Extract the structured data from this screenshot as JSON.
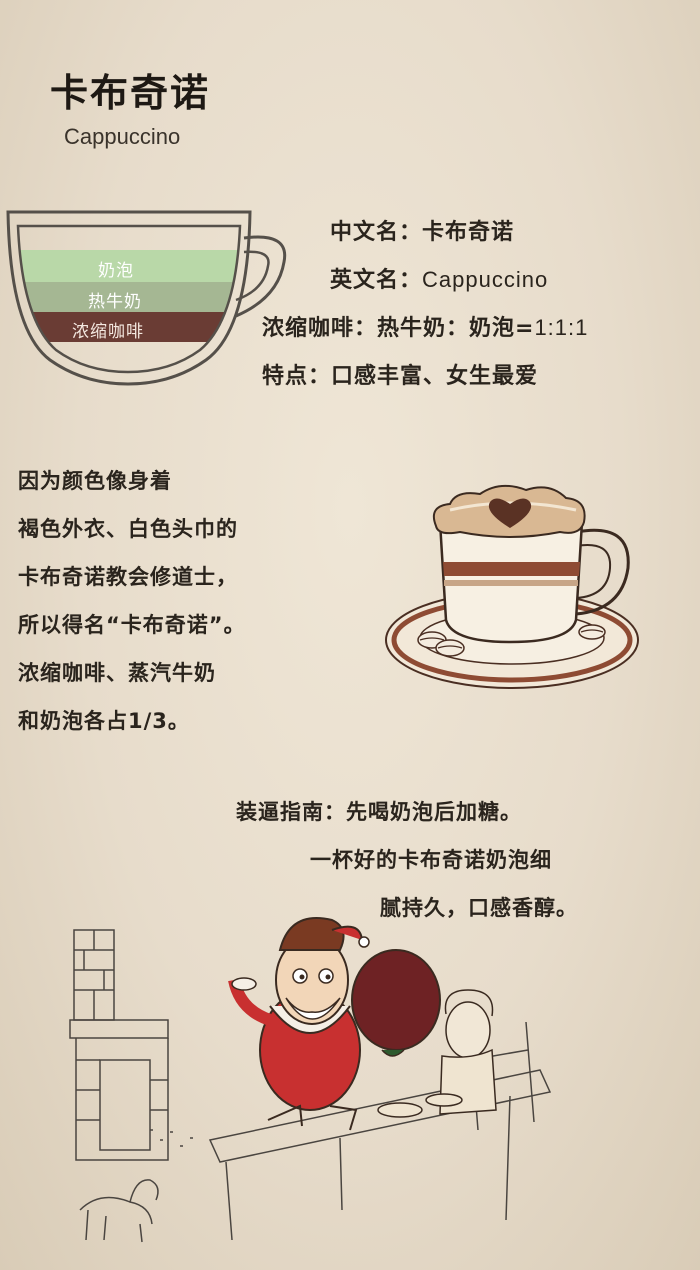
{
  "header": {
    "title": "卡布奇诺",
    "subtitle": "Cappuccino"
  },
  "diagram": {
    "layers": [
      {
        "label": "奶泡",
        "color": "#b9d8a8"
      },
      {
        "label": "热牛奶",
        "color": "#a5b793"
      },
      {
        "label": "浓缩咖啡",
        "color": "#6a3c34"
      }
    ]
  },
  "info": {
    "cn_name": "中文名：卡布奇诺",
    "en_name_label": "英文名：",
    "en_name_value": "Cappuccino",
    "ratio_label": "浓缩咖啡：热牛奶：奶泡=",
    "ratio_value": "1:1:1",
    "feature": "特点：口感丰富、女生最爱"
  },
  "story": {
    "lines": [
      "因为颜色像身着",
      "褐色外衣、白色头巾的",
      "卡布奇诺教会修道士，",
      "所以得名“卡布奇诺”。",
      "浓缩咖啡、蒸汽牛奶",
      "和奶泡各占1/3。"
    ]
  },
  "guide": {
    "lines": [
      "装逼指南：先喝奶泡后加糖。",
      "一杯好的卡布奇诺奶泡细",
      "腻持久，口感香醇。"
    ]
  }
}
